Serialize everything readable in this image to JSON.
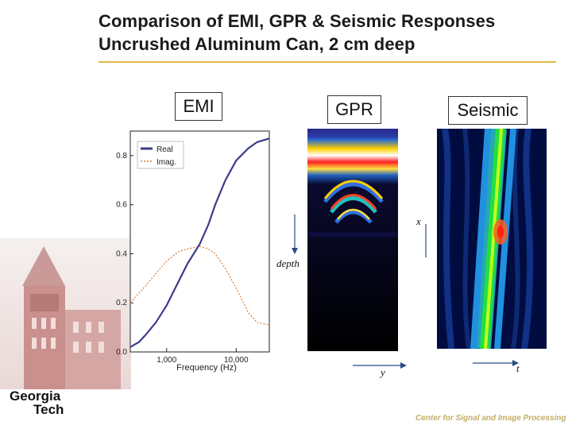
{
  "title": {
    "line1": "Comparison of EMI, GPR & Seismic Responses",
    "line2": "Uncrushed Aluminum Can, 2 cm deep"
  },
  "labels": {
    "emi": "EMI",
    "gpr": "GPR",
    "seismic": "Seismic"
  },
  "axes": {
    "x": "x",
    "depth": "depth",
    "y": "y",
    "t": "t"
  },
  "chart_data": {
    "type": "line",
    "xlabel": "Frequency (Hz)",
    "ylabel": "",
    "xscale": "log",
    "xlim": [
      300,
      30000
    ],
    "ylim": [
      0,
      0.9
    ],
    "x_ticks": [
      "1,000",
      "10,000"
    ],
    "y_ticks": [
      "0.0",
      "0.2",
      "0.4",
      "0.6",
      "0.8"
    ],
    "legend_position": "top-left",
    "grid": false,
    "series": [
      {
        "name": "Real",
        "x": [
          300,
          400,
          500,
          700,
          1000,
          1500,
          2000,
          3000,
          4000,
          5000,
          7000,
          10000,
          15000,
          20000,
          30000
        ],
        "values": [
          0.02,
          0.04,
          0.07,
          0.12,
          0.19,
          0.29,
          0.36,
          0.44,
          0.52,
          0.6,
          0.7,
          0.78,
          0.83,
          0.855,
          0.87
        ]
      },
      {
        "name": "Imag.",
        "x": [
          300,
          400,
          500,
          700,
          1000,
          1500,
          2000,
          3000,
          4000,
          5000,
          7000,
          10000,
          15000,
          20000,
          30000
        ],
        "values": [
          0.2,
          0.24,
          0.27,
          0.32,
          0.37,
          0.41,
          0.42,
          0.43,
          0.42,
          0.4,
          0.34,
          0.26,
          0.16,
          0.12,
          0.11
        ]
      }
    ]
  },
  "footer": {
    "text": "Center for Signal and Image Processing"
  },
  "logo": {
    "line1": "Georgia",
    "line2": "Tech"
  },
  "colors": {
    "real": "#3b3b8c",
    "imag": "#e07a30",
    "accent_rule": "#e5b94a",
    "footer": "#c4ad67"
  }
}
